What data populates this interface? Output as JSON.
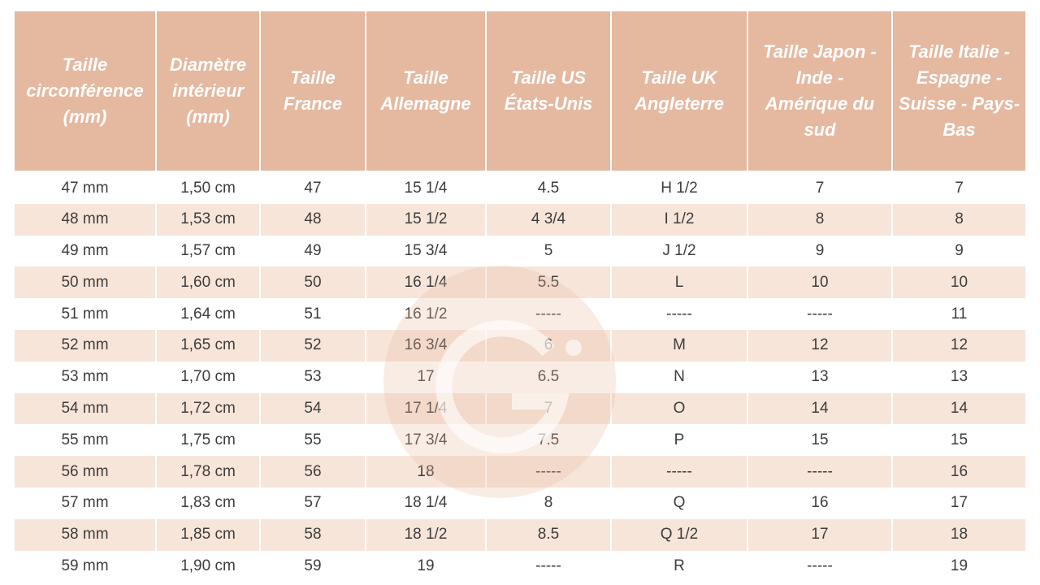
{
  "table": {
    "headers": [
      "Taille circonférence (mm)",
      "Diamètre intérieur (mm)",
      "Taille France",
      "Taille Allemagne",
      "Taille US États-Unis",
      "Taille UK Angleterre",
      "Taille Japon - Inde - Amérique du sud",
      "Taille Italie - Espagne - Suisse - Pays-Bas"
    ],
    "rows": [
      [
        "47 mm",
        "1,50 cm",
        "47",
        "15 1/4",
        "4.5",
        "H 1/2",
        "7",
        "7"
      ],
      [
        "48 mm",
        "1,53 cm",
        "48",
        "15 1/2",
        "4 3/4",
        "I 1/2",
        "8",
        "8"
      ],
      [
        "49 mm",
        "1,57 cm",
        "49",
        "15 3/4",
        "5",
        "J 1/2",
        "9",
        "9"
      ],
      [
        "50 mm",
        "1,60 cm",
        "50",
        "16 1/4",
        "5.5",
        "L",
        "10",
        "10"
      ],
      [
        "51 mm",
        "1,64 cm",
        "51",
        "16 1/2",
        "-----",
        "-----",
        "-----",
        "11"
      ],
      [
        "52 mm",
        "1,65 cm",
        "52",
        "16 3/4",
        "6",
        "M",
        "12",
        "12"
      ],
      [
        "53 mm",
        "1,70 cm",
        "53",
        "17",
        "6.5",
        "N",
        "13",
        "13"
      ],
      [
        "54 mm",
        "1,72 cm",
        "54",
        "17 1/4",
        "7",
        "O",
        "14",
        "14"
      ],
      [
        "55 mm",
        "1,75 cm",
        "55",
        "17 3/4",
        "7.5",
        "P",
        "15",
        "15"
      ],
      [
        "56 mm",
        "1,78 cm",
        "56",
        "18",
        "-----",
        "-----",
        "-----",
        "16"
      ],
      [
        "57 mm",
        "1,83 cm",
        "57",
        "18 1/4",
        "8",
        "Q",
        "16",
        "17"
      ],
      [
        "58 mm",
        "1,85 cm",
        "58",
        "18 1/2",
        "8.5",
        "Q 1/2",
        "17",
        "18"
      ],
      [
        "59 mm",
        "1,90 cm",
        "59",
        "19",
        "-----",
        "R",
        "-----",
        "19"
      ]
    ]
  }
}
